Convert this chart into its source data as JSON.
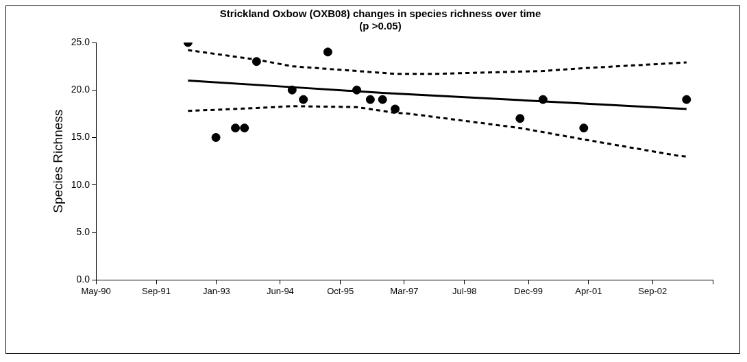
{
  "chart_data": {
    "type": "scatter",
    "title": "Strickland Oxbow (OXB08) changes in species richness over time",
    "subtitle": "(p >0.05)",
    "ylabel": "Species Richness",
    "xlim": [
      "1990-05-01",
      "2004-01-01"
    ],
    "xticks": [
      {
        "value": "1990-05-01",
        "label": "May-90"
      },
      {
        "value": "1991-09-01",
        "label": "Sep-91"
      },
      {
        "value": "1993-01-01",
        "label": "Jan-93"
      },
      {
        "value": "1994-06-01",
        "label": "Jun-94"
      },
      {
        "value": "1995-10-01",
        "label": "Oct-95"
      },
      {
        "value": "1997-03-01",
        "label": "Mar-97"
      },
      {
        "value": "1998-07-01",
        "label": "Jul-98"
      },
      {
        "value": "1999-12-01",
        "label": "Dec-99"
      },
      {
        "value": "2001-04-01",
        "label": "Apr-01"
      },
      {
        "value": "2002-09-01",
        "label": "Sep-02"
      },
      {
        "value": "2004-01-01",
        "label": null
      }
    ],
    "ylim": [
      0,
      25
    ],
    "yticks": [
      {
        "value": 0,
        "label": "0.0"
      },
      {
        "value": 5,
        "label": "5.0"
      },
      {
        "value": 10,
        "label": "10.0"
      },
      {
        "value": 15,
        "label": "15.0"
      },
      {
        "value": 20,
        "label": "20.0"
      },
      {
        "value": 25,
        "label": "25.0"
      }
    ],
    "grid": false,
    "legend": false,
    "series": [
      {
        "type": "scatter",
        "color": "#000000",
        "marker": "circle",
        "x": [
          "1992-05-15",
          "1992-12-27",
          "1993-06-03",
          "1993-08-15",
          "1993-11-21",
          "1994-09-05",
          "1994-12-05",
          "1995-06-21",
          "1996-02-10",
          "1996-05-30",
          "1996-09-06",
          "1996-12-17",
          "1999-09-24",
          "2000-03-28",
          "2001-02-21",
          "2003-06-03"
        ],
        "values": [
          25,
          15,
          16,
          16,
          23,
          20,
          19,
          24,
          20,
          19,
          19,
          18,
          17,
          19,
          16,
          19
        ]
      },
      {
        "type": "line",
        "color": "#000000",
        "marker": "none",
        "line_style": "solid",
        "x": [
          "1992-05-15",
          "1994-09-05",
          "1996-09-06",
          "2003-06-03"
        ],
        "values": [
          21.0,
          20.3,
          19.7,
          18.0
        ]
      },
      {
        "type": "line",
        "color": "#000000",
        "marker": "none",
        "line_style": "dashed",
        "x": [
          "1992-05-15",
          "1993-11-21",
          "1994-09-05",
          "1996-02-10",
          "1996-12-17",
          "1997-11-10",
          "2000-03-28",
          "2001-02-21",
          "2003-06-03"
        ],
        "values": [
          24.2,
          23.2,
          22.5,
          22.0,
          21.7,
          21.7,
          22.0,
          22.3,
          22.9
        ]
      },
      {
        "type": "line",
        "color": "#000000",
        "marker": "none",
        "line_style": "dashed",
        "x": [
          "1992-05-15",
          "1993-11-21",
          "1994-09-05",
          "1996-02-10",
          "1996-12-17",
          "1997-04-13",
          "1999-09-24",
          "2001-02-21",
          "2003-03-18",
          "2003-06-03"
        ],
        "values": [
          17.8,
          18.1,
          18.3,
          18.2,
          17.6,
          17.5,
          16.0,
          14.8,
          13.1,
          13.0
        ]
      }
    ]
  }
}
